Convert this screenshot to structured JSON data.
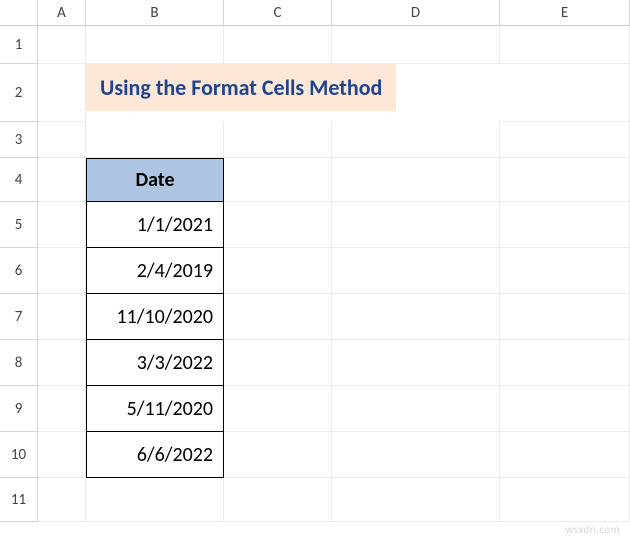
{
  "columns": [
    "A",
    "B",
    "C",
    "D",
    "E"
  ],
  "rows": [
    "1",
    "2",
    "3",
    "4",
    "5",
    "6",
    "7",
    "8",
    "9",
    "10",
    "11"
  ],
  "title": {
    "text": "Using the Format Cells Method",
    "bg_color": "#fde8d8",
    "text_color": "#20448e",
    "fontsize": 22
  },
  "table": {
    "header": {
      "text": "Date",
      "bg_color": "#aec6e4",
      "fontsize": 20
    },
    "data": [
      "1/1/2021",
      "2/4/2019",
      "11/10/2020",
      "3/3/2022",
      "5/11/2020",
      "6/6/2022"
    ],
    "border_color": "#000000",
    "fontsize": 20,
    "text_align": "right"
  },
  "watermark": "wsxdn.com",
  "grid": {
    "header_border": "#d4d4d4",
    "cell_border": "#ebebeb",
    "header_font_color": "#444444",
    "header_fontsize": 15
  }
}
